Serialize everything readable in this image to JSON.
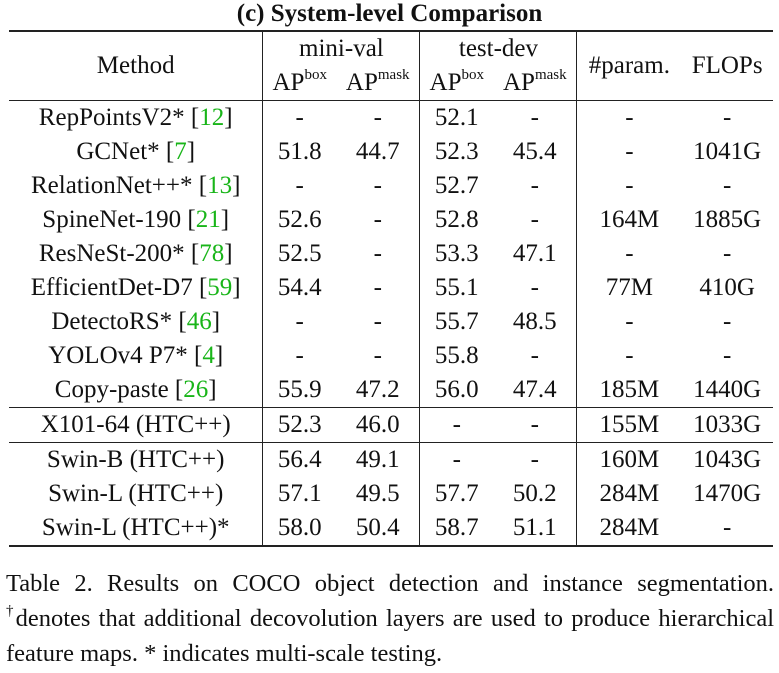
{
  "title": "(c) System-level Comparison",
  "header": {
    "method": "Method",
    "group_minival": "mini-val",
    "group_testdev": "test-dev",
    "ap": "AP",
    "box": "box",
    "mask": "mask",
    "params": "#param.",
    "flops": "FLOPs"
  },
  "rows": [
    {
      "name": "RepPointsV2*",
      "ref": "12",
      "mv_box": "-",
      "mv_mask": "-",
      "td_box": "52.1",
      "td_mask": "-",
      "params": "-",
      "flops": "-"
    },
    {
      "name": "GCNet*",
      "ref": "7",
      "mv_box": "51.8",
      "mv_mask": "44.7",
      "td_box": "52.3",
      "td_mask": "45.4",
      "params": "-",
      "flops": "1041G"
    },
    {
      "name": "RelationNet++*",
      "ref": "13",
      "mv_box": "-",
      "mv_mask": "-",
      "td_box": "52.7",
      "td_mask": "-",
      "params": "-",
      "flops": "-"
    },
    {
      "name": "SpineNet-190",
      "ref": "21",
      "mv_box": "52.6",
      "mv_mask": "-",
      "td_box": "52.8",
      "td_mask": "-",
      "params": "164M",
      "flops": "1885G"
    },
    {
      "name": "ResNeSt-200*",
      "ref": "78",
      "mv_box": "52.5",
      "mv_mask": "-",
      "td_box": "53.3",
      "td_mask": "47.1",
      "params": "-",
      "flops": "-"
    },
    {
      "name": "EfficientDet-D7",
      "ref": "59",
      "mv_box": "54.4",
      "mv_mask": "-",
      "td_box": "55.1",
      "td_mask": "-",
      "params": "77M",
      "flops": "410G"
    },
    {
      "name": "DetectoRS*",
      "ref": "46",
      "mv_box": "-",
      "mv_mask": "-",
      "td_box": "55.7",
      "td_mask": "48.5",
      "params": "-",
      "flops": "-"
    },
    {
      "name": "YOLOv4 P7*",
      "ref": "4",
      "mv_box": "-",
      "mv_mask": "-",
      "td_box": "55.8",
      "td_mask": "-",
      "params": "-",
      "flops": "-"
    },
    {
      "name": "Copy-paste",
      "ref": "26",
      "mv_box": "55.9",
      "mv_mask": "47.2",
      "td_box": "56.0",
      "td_mask": "47.4",
      "params": "185M",
      "flops": "1440G"
    },
    {
      "name": "X101-64 (HTC++)",
      "ref": "",
      "mv_box": "52.3",
      "mv_mask": "46.0",
      "td_box": "-",
      "td_mask": "-",
      "params": "155M",
      "flops": "1033G"
    },
    {
      "name": "Swin-B (HTC++)",
      "ref": "",
      "mv_box": "56.4",
      "mv_mask": "49.1",
      "td_box": "-",
      "td_mask": "-",
      "params": "160M",
      "flops": "1043G"
    },
    {
      "name": "Swin-L (HTC++)",
      "ref": "",
      "mv_box": "57.1",
      "mv_mask": "49.5",
      "td_box": "57.7",
      "td_mask": "50.2",
      "params": "284M",
      "flops": "1470G"
    },
    {
      "name": "Swin-L (HTC++)*",
      "ref": "",
      "mv_box": "58.0",
      "mv_mask": "50.4",
      "td_box": "58.7",
      "td_mask": "51.1",
      "params": "284M",
      "flops": "-"
    }
  ],
  "caption": {
    "part1": "Table 2. Results on COCO object detection and instance segmentation. ",
    "dagger": "†",
    "part2": "denotes that additional decovolution layers are used to produce hierarchical feature maps. * indicates multi-scale testing."
  }
}
